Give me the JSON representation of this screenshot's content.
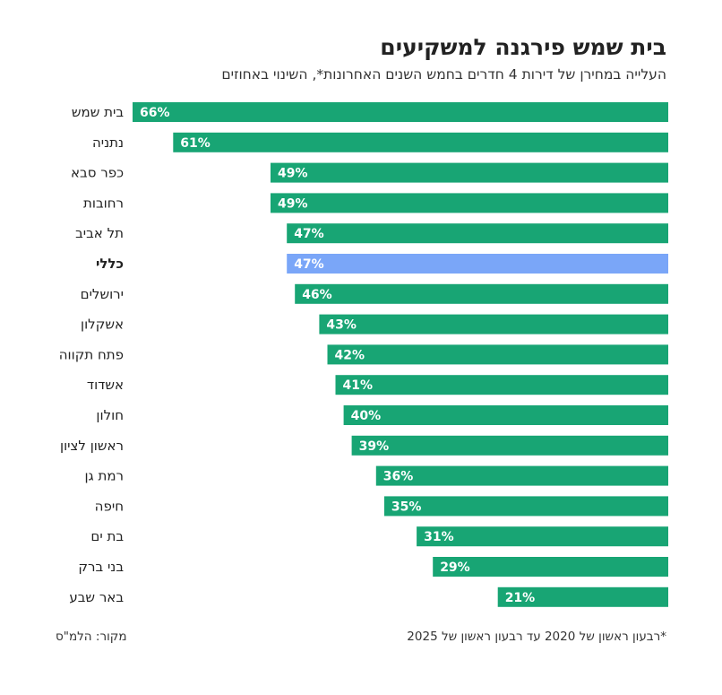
{
  "header": {
    "title": "בית שמש פירגנה למשקיעים",
    "subtitle": "העלייה במחירן של דירות 4 חדרים בחמש השנים האחרונות*, השינוי באחוזים"
  },
  "footer": {
    "footnote": "*רבעון ראשון של 2020 עד רבעון ראשון של 2025",
    "source": "מקור: הלמ\"ס"
  },
  "colors": {
    "bar": "#18a574",
    "highlight": "#7aa6f8",
    "label": "#ffffff"
  },
  "chart_data": {
    "type": "bar",
    "orientation": "horizontal",
    "categories": [
      "בית שמש",
      "נתניה",
      "כפר סבא",
      "רחובות",
      "תל אביב",
      "כללי",
      "ירושלים",
      "אשקלון",
      "פתח תקווה",
      "אשדוד",
      "חולון",
      "ראשון לציון",
      "רמת גן",
      "חיפה",
      "בת ים",
      "בני ברק",
      "באר שבע"
    ],
    "values": [
      66,
      61,
      49,
      49,
      47,
      47,
      46,
      43,
      42,
      41,
      40,
      39,
      36,
      35,
      31,
      29,
      21
    ],
    "value_labels": [
      "66%",
      "61%",
      "49%",
      "49%",
      "47%",
      "47%",
      "46%",
      "43%",
      "42%",
      "41%",
      "40%",
      "39%",
      "36%",
      "35%",
      "31%",
      "29%",
      "21%"
    ],
    "highlight_category": "כללי",
    "xlim": [
      0,
      66
    ],
    "grid": false,
    "legend": "none"
  }
}
